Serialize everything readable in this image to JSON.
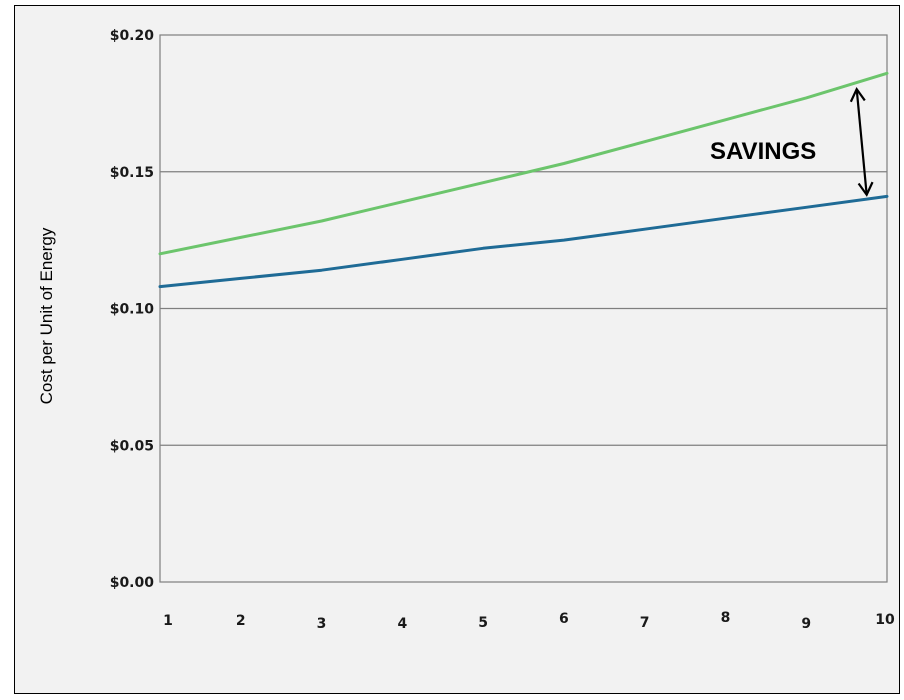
{
  "chart_data": {
    "type": "line",
    "title": "",
    "xlabel": "",
    "ylabel": "Cost per Unit of Energy",
    "x": [
      1,
      2,
      3,
      4,
      5,
      6,
      7,
      8,
      9,
      10
    ],
    "xlim": [
      1,
      10
    ],
    "ylim": [
      0,
      0.2
    ],
    "x_tick_labels": [
      "1",
      "2",
      "3",
      "4",
      "5",
      "6",
      "7",
      "8",
      "9",
      "10"
    ],
    "y_tick_labels": [
      "$0.00",
      "$0.05",
      "$0.10",
      "$0.15",
      "$0.20"
    ],
    "y_ticks": [
      0,
      0.05,
      0.1,
      0.15,
      0.2
    ],
    "grid": "horizontal",
    "series": [
      {
        "color": "#6cc56c",
        "values": [
          0.12,
          0.126,
          0.132,
          0.139,
          0.146,
          0.153,
          0.161,
          0.169,
          0.177,
          0.186
        ]
      },
      {
        "color": "#1f6b96",
        "values": [
          0.108,
          0.111,
          0.114,
          0.118,
          0.122,
          0.125,
          0.129,
          0.133,
          0.137,
          0.141
        ]
      }
    ],
    "annotation": {
      "text": "SAVINGS",
      "arrow_color": "#000000"
    }
  }
}
